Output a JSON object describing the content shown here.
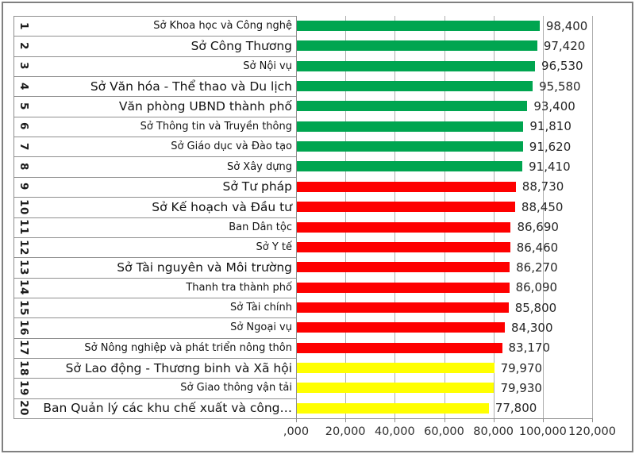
{
  "chart_data": {
    "type": "bar",
    "orientation": "horizontal",
    "title": "",
    "xlabel": "",
    "ylabel": "",
    "xlim": [
      0,
      120000
    ],
    "grid": true,
    "palette": {
      "green": "#00A550",
      "red": "#FE0000",
      "yellow": "#FFFF00"
    },
    "x_ticks": [
      {
        "label": ",000",
        "value": 0
      },
      {
        "label": "20,000",
        "value": 20000
      },
      {
        "label": "40,000",
        "value": 40000
      },
      {
        "label": "60,000",
        "value": 60000
      },
      {
        "label": "80,000",
        "value": 80000
      },
      {
        "label": "100,000",
        "value": 100000
      },
      {
        "label": "120,000",
        "value": 120000
      }
    ],
    "rows": [
      {
        "rank": "1",
        "label": "Sở Khoa học và Công nghệ",
        "value": 98400,
        "value_label": "98,400",
        "color": "green",
        "large": false
      },
      {
        "rank": "2",
        "label": "Sở Công Thương",
        "value": 97420,
        "value_label": "97,420",
        "color": "green",
        "large": true
      },
      {
        "rank": "3",
        "label": "Sở Nội vụ",
        "value": 96530,
        "value_label": "96,530",
        "color": "green",
        "large": false
      },
      {
        "rank": "4",
        "label": "Sở Văn hóa - Thể thao và Du lịch",
        "value": 95580,
        "value_label": "95,580",
        "color": "green",
        "large": true
      },
      {
        "rank": "5",
        "label": "Văn phòng UBND thành phố",
        "value": 93400,
        "value_label": "93,400",
        "color": "green",
        "large": true
      },
      {
        "rank": "6",
        "label": "Sở Thông tin và Truyền thông",
        "value": 91810,
        "value_label": "91,810",
        "color": "green",
        "large": false
      },
      {
        "rank": "7",
        "label": "Sở Giáo dục và Đào tạo",
        "value": 91620,
        "value_label": "91,620",
        "color": "green",
        "large": false
      },
      {
        "rank": "8",
        "label": "Sở Xây dựng",
        "value": 91410,
        "value_label": "91,410",
        "color": "green",
        "large": false
      },
      {
        "rank": "9",
        "label": "Sở Tư pháp",
        "value": 88730,
        "value_label": "88,730",
        "color": "red",
        "large": true
      },
      {
        "rank": "10",
        "label": "Sở Kế hoạch và Đầu tư",
        "value": 88450,
        "value_label": "88,450",
        "color": "red",
        "large": true
      },
      {
        "rank": "11",
        "label": "Ban Dân tộc",
        "value": 86690,
        "value_label": "86,690",
        "color": "red",
        "large": false
      },
      {
        "rank": "12",
        "label": "Sở Y tế",
        "value": 86460,
        "value_label": "86,460",
        "color": "red",
        "large": false
      },
      {
        "rank": "13",
        "label": "Sở Tài nguyên và Môi trường",
        "value": 86270,
        "value_label": "86,270",
        "color": "red",
        "large": true
      },
      {
        "rank": "14",
        "label": "Thanh tra thành phố",
        "value": 86090,
        "value_label": "86,090",
        "color": "red",
        "large": false
      },
      {
        "rank": "15",
        "label": "Sở Tài chính",
        "value": 85800,
        "value_label": "85,800",
        "color": "red",
        "large": false
      },
      {
        "rank": "16",
        "label": "Sở Ngoại vụ",
        "value": 84300,
        "value_label": "84,300",
        "color": "red",
        "large": false
      },
      {
        "rank": "17",
        "label": "Sở Nông nghiệp và phát triển nông thôn",
        "value": 83170,
        "value_label": "83,170",
        "color": "red",
        "large": false
      },
      {
        "rank": "18",
        "label": "Sở Lao động - Thương binh và Xã hội",
        "value": 79970,
        "value_label": "79,970",
        "color": "yellow",
        "large": true
      },
      {
        "rank": "19",
        "label": "Sở Giao thông vận tải",
        "value": 79930,
        "value_label": "79,930",
        "color": "yellow",
        "large": false
      },
      {
        "rank": "20",
        "label": "Ban Quản lý các khu chế xuất và công…",
        "value": 77800,
        "value_label": "77,800",
        "color": "yellow",
        "large": true
      }
    ]
  }
}
